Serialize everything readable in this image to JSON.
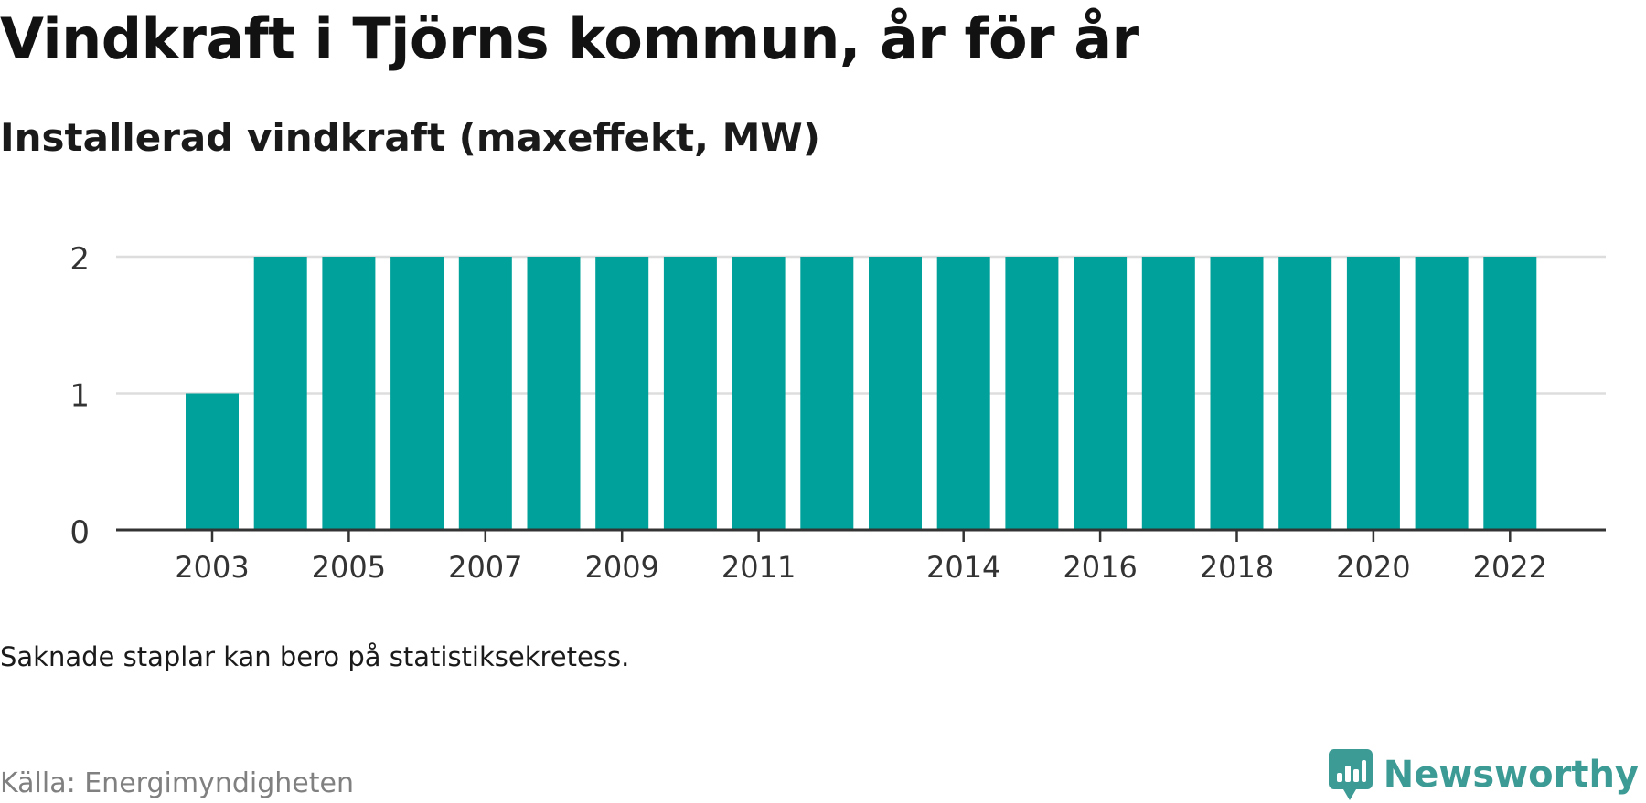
{
  "header": {
    "title": "Vindkraft i Tjörns kommun, år för år",
    "subtitle": "Installerad vindkraft (maxeffekt, MW)"
  },
  "footer": {
    "note": "Saknade staplar kan bero på statistiksekretess.",
    "source": "Källa: Energimyndigheten",
    "brand": "Newsworthy"
  },
  "colors": {
    "bar": "#00a19a",
    "grid": "#dddddd",
    "axis": "#333333",
    "brand": "#3d9b95",
    "source_text": "#808080"
  },
  "chart_data": {
    "type": "bar",
    "title": "Vindkraft i Tjörns kommun, år för år",
    "subtitle": "Installerad vindkraft (maxeffekt, MW)",
    "xlabel": "",
    "ylabel": "",
    "categories": [
      "2003",
      "2004",
      "2005",
      "2006",
      "2007",
      "2008",
      "2009",
      "2010",
      "2011",
      "2012",
      "2013",
      "2014",
      "2015",
      "2016",
      "2017",
      "2018",
      "2019",
      "2020",
      "2021",
      "2022"
    ],
    "values": [
      1,
      2,
      2,
      2,
      2,
      2,
      2,
      2,
      2,
      2,
      2,
      2,
      2,
      2,
      2,
      2,
      2,
      2,
      2,
      2
    ],
    "x_tick_labels": [
      "2003",
      "2005",
      "2007",
      "2009",
      "2011",
      "2014",
      "2016",
      "2018",
      "2020",
      "2022"
    ],
    "y_ticks": [
      0,
      1,
      2
    ],
    "ylim": [
      0,
      2
    ],
    "grid": true,
    "legend": "none"
  }
}
